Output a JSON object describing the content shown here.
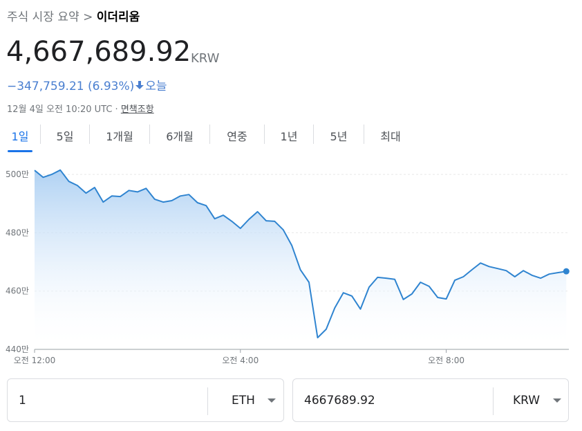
{
  "breadcrumb": {
    "parent": "주식 시장 요약",
    "separator": ">",
    "current": "이더리움"
  },
  "quote": {
    "price": "4,667,689.92",
    "currency": "KRW",
    "change": "−347,759.21 (6.93%)",
    "period": "오늘",
    "timestamp": "12월 4일 오전 10:20 UTC ·",
    "disclaimer": "면책조항"
  },
  "tabs": [
    "1일",
    "5일",
    "1개월",
    "6개월",
    "연중",
    "1년",
    "5년",
    "최대"
  ],
  "selected_tab": 0,
  "chart_data": {
    "type": "area",
    "color": "#2f84d0",
    "grid": true,
    "xlim": [
      0,
      623
    ],
    "xticks": [
      {
        "value": 0,
        "label": "오전 12:00"
      },
      {
        "value": 240,
        "label": "오전 4:00"
      },
      {
        "value": 480,
        "label": "오전 8:00"
      }
    ],
    "ylim": [
      4400000,
      5050000
    ],
    "yticks": [
      {
        "value": 4400000,
        "label": "440만"
      },
      {
        "value": 4600000,
        "label": "460만"
      },
      {
        "value": 4800000,
        "label": "480만"
      },
      {
        "value": 5000000,
        "label": "500만"
      }
    ],
    "x": [
      0,
      10,
      20,
      30,
      40,
      50,
      60,
      70,
      80,
      90,
      100,
      110,
      120,
      130,
      140,
      150,
      160,
      170,
      180,
      190,
      200,
      210,
      220,
      230,
      240,
      250,
      260,
      270,
      280,
      290,
      300,
      310,
      320,
      330,
      340,
      350,
      360,
      370,
      380,
      390,
      400,
      410,
      420,
      430,
      440,
      450,
      460,
      470,
      480,
      490,
      500,
      510,
      520,
      530,
      540,
      550,
      560,
      570,
      580,
      590,
      600,
      610,
      620
    ],
    "values": [
      5014000,
      4990000,
      5000000,
      5015000,
      4976000,
      4962000,
      4936000,
      4955000,
      4905000,
      4926000,
      4924000,
      4945000,
      4940000,
      4952000,
      4915000,
      4905000,
      4910000,
      4926000,
      4931000,
      4903000,
      4893000,
      4848000,
      4860000,
      4839000,
      4815000,
      4846000,
      4872000,
      4841000,
      4839000,
      4810000,
      4756000,
      4673000,
      4630000,
      4440000,
      4469000,
      4542000,
      4594000,
      4583000,
      4538000,
      4613000,
      4647000,
      4644000,
      4640000,
      4571000,
      4590000,
      4630000,
      4616000,
      4578000,
      4573000,
      4637000,
      4649000,
      4673000,
      4696000,
      4684000,
      4677000,
      4670000,
      4649000,
      4670000,
      4654000,
      4644000,
      4658000,
      4663000,
      4667689.92
    ]
  },
  "converter": {
    "from_amount": "1",
    "from_unit": "ETH",
    "to_amount": "4667689.92",
    "to_unit": "KRW"
  }
}
